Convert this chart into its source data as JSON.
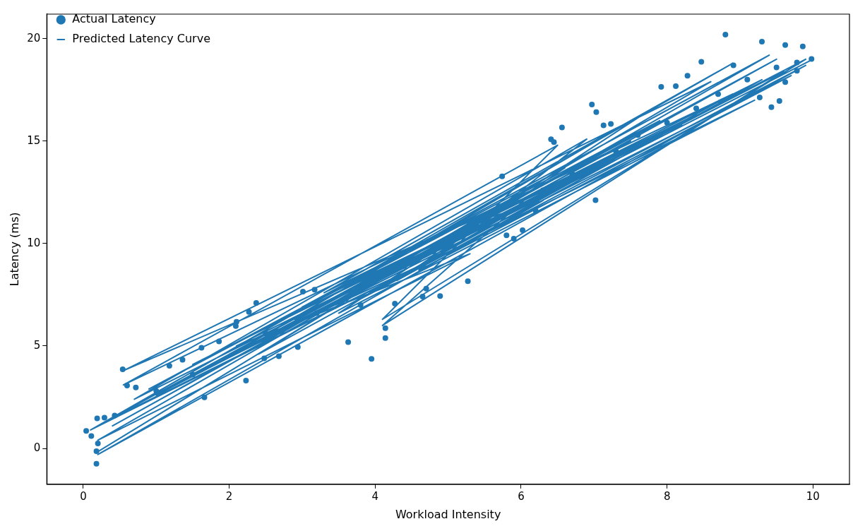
{
  "chart_data": {
    "type": "scatter",
    "xlabel": "Workload Intensity",
    "ylabel": "Latency (ms)",
    "xlim": [
      -0.5,
      10.5
    ],
    "ylim": [
      -1.75,
      21.2
    ],
    "xticks": [
      0,
      2,
      4,
      6,
      8,
      10
    ],
    "yticks": [
      0,
      5,
      10,
      15,
      20
    ],
    "legend": "top left",
    "series": [
      {
        "name": "Actual Latency",
        "type": "scatter",
        "marker": "circle",
        "color": "#1f77b4",
        "x": [
          0.04,
          0.11,
          0.19,
          0.18,
          0.18,
          0.2,
          0.29,
          0.43,
          0.54,
          0.6,
          0.72,
          1.18,
          1.36,
          1.62,
          1.66,
          1.86,
          2.09,
          2.1,
          2.23,
          2.27,
          2.37,
          2.48,
          2.68,
          2.94,
          3.01,
          3.17,
          3.63,
          3.95,
          4.14,
          4.14,
          4.27,
          4.65,
          4.89,
          5.27,
          5.74,
          5.9,
          6.02,
          6.41,
          6.45,
          6.56,
          6.97,
          7.03,
          7.02,
          7.13,
          7.23,
          7.92,
          8.12,
          8.28,
          8.47,
          8.8,
          8.91,
          9.3,
          9.27,
          9.43,
          9.54,
          9.62,
          9.62,
          9.78,
          9.86,
          9.98,
          9.78,
          1.0,
          1.5,
          2.5,
          3.2,
          3.6,
          4.4,
          4.8,
          6.3,
          6.7,
          7.3,
          7.6,
          8.0,
          8.4,
          8.7,
          9.1,
          9.5,
          3.8,
          4.7,
          5.8,
          6.2
        ],
        "values": [
          0.85,
          0.6,
          1.47,
          -0.14,
          -0.75,
          0.24,
          1.5,
          1.6,
          3.86,
          3.07,
          2.97,
          4.03,
          4.33,
          4.91,
          2.49,
          5.22,
          5.97,
          6.18,
          3.31,
          6.66,
          7.1,
          4.4,
          4.5,
          4.95,
          7.65,
          7.75,
          5.19,
          4.37,
          5.87,
          5.39,
          7.07,
          7.41,
          7.44,
          8.16,
          13.28,
          10.24,
          10.65,
          15.09,
          14.95,
          15.67,
          16.79,
          16.42,
          12.12,
          15.77,
          15.84,
          17.65,
          17.68,
          18.19,
          18.87,
          20.2,
          18.7,
          19.86,
          17.13,
          16.66,
          16.96,
          19.69,
          17.88,
          18.84,
          19.62,
          19.01,
          18.43,
          2.8,
          3.6,
          5.6,
          6.6,
          7.3,
          8.9,
          9.6,
          12.6,
          13.4,
          14.5,
          15.3,
          15.9,
          16.6,
          17.3,
          18.0,
          18.6,
          7.0,
          7.8,
          10.4,
          11.6
        ]
      },
      {
        "name": "Predicted Latency Curve",
        "type": "line",
        "marker": "none",
        "line_style": "solid",
        "color": "#1f77b4",
        "x": [
          0.18,
          5.8,
          2.4,
          8.9,
          0.55,
          6.5,
          4.1,
          9.9,
          1.3,
          7.2,
          3.0,
          9.4,
          0.2,
          5.3,
          2.1,
          8.2,
          0.7,
          6.9,
          4.6,
          9.7,
          1.7,
          7.8,
          3.5,
          9.2,
          0.3,
          5.0,
          2.7,
          8.6,
          0.55,
          6.1,
          4.1,
          9.6,
          1.0,
          7.5,
          3.3,
          8.9,
          0.1,
          4.9,
          2.0,
          7.9,
          0.9,
          6.6,
          4.3,
          9.3,
          1.5,
          7.0,
          3.8,
          9.9,
          0.2,
          6.3,
          5.5,
          8.4,
          2.9,
          9.5,
          0.4,
          5.6,
          3.9,
          7.4,
          1.2,
          10.0
        ],
        "values": [
          -0.2,
          12.0,
          4.6,
          17.3,
          3.1,
          14.8,
          6.3,
          19.0,
          3.2,
          14.1,
          6.9,
          19.2,
          0.4,
          9.5,
          5.0,
          15.8,
          2.4,
          15.1,
          8.7,
          18.2,
          3.9,
          16.6,
          6.6,
          17.0,
          1.3,
          10.4,
          5.6,
          17.9,
          3.8,
          12.3,
          6.0,
          18.4,
          2.6,
          15.0,
          7.6,
          18.8,
          0.9,
          9.4,
          4.6,
          16.0,
          2.9,
          13.7,
          8.2,
          18.0,
          4.1,
          13.8,
          7.3,
          18.7,
          -0.3,
          12.1,
          11.2,
          16.3,
          6.3,
          19.0,
          1.1,
          11.4,
          7.9,
          14.5,
          3.0,
          19.0
        ]
      }
    ]
  }
}
